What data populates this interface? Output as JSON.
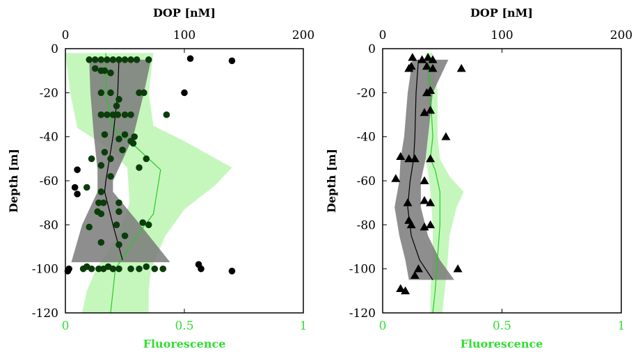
{
  "colors": {
    "fluor_band": "#c5f7bd",
    "fluor_line": "#22cc22",
    "dop_band": "#7a7a7a",
    "dop_line": "#000000",
    "marker_left": "#0b3d0b",
    "marker_left_outlier": "#000000",
    "marker_right": "#000000",
    "green_text": "#33dd33"
  },
  "chart_data": [
    {
      "type": "scatter",
      "panel": "left",
      "top_axis": {
        "label": "DOP [nM]",
        "range": [
          0,
          200
        ],
        "ticks": [
          "0",
          "100",
          "200"
        ],
        "tick_values": [
          0,
          100,
          200
        ]
      },
      "bottom_axis": {
        "label": "Fluorescence",
        "range": [
          0,
          1
        ],
        "ticks": [
          "0",
          "0.5",
          "1"
        ],
        "tick_values": [
          0,
          0.5,
          1
        ]
      },
      "y_axis": {
        "label": "Depth [m]",
        "range": [
          -120,
          0
        ],
        "ticks": [
          "0",
          "-20",
          "-40",
          "-60",
          "-80",
          "-100",
          "-120"
        ],
        "tick_values": [
          0,
          -20,
          -40,
          -60,
          -80,
          -100,
          -120
        ]
      },
      "grid": false,
      "marker": "circle",
      "dop_points": [
        [
          20,
          -5
        ],
        [
          25,
          -5
        ],
        [
          30,
          -5
        ],
        [
          35,
          -5
        ],
        [
          40,
          -5
        ],
        [
          45,
          -5
        ],
        [
          50,
          -5
        ],
        [
          55,
          -5
        ],
        [
          60,
          -5
        ],
        [
          70,
          -5
        ],
        [
          105,
          -4.5
        ],
        [
          140,
          -5.5
        ],
        [
          25,
          -9
        ],
        [
          30,
          -10
        ],
        [
          33,
          -10
        ],
        [
          38,
          -11
        ],
        [
          30,
          -20
        ],
        [
          38,
          -20
        ],
        [
          62,
          -20
        ],
        [
          66,
          -20
        ],
        [
          100,
          -20
        ],
        [
          45,
          -23
        ],
        [
          43,
          -26
        ],
        [
          30,
          -30
        ],
        [
          35,
          -30
        ],
        [
          40,
          -30
        ],
        [
          44,
          -30
        ],
        [
          50,
          -30
        ],
        [
          55,
          -30
        ],
        [
          85,
          -30
        ],
        [
          33,
          -39
        ],
        [
          50,
          -39
        ],
        [
          58,
          -40
        ],
        [
          45,
          -41
        ],
        [
          55,
          -42
        ],
        [
          57,
          -43
        ],
        [
          33,
          -47
        ],
        [
          48,
          -46
        ],
        [
          22,
          -50
        ],
        [
          38,
          -50
        ],
        [
          68,
          -50
        ],
        [
          30,
          -53
        ],
        [
          62,
          -54
        ],
        [
          10,
          -55
        ],
        [
          38,
          -58
        ],
        [
          8,
          -63
        ],
        [
          18,
          -63
        ],
        [
          30,
          -65
        ],
        [
          10,
          -66
        ],
        [
          28,
          -70
        ],
        [
          32,
          -70
        ],
        [
          45,
          -70
        ],
        [
          27,
          -74
        ],
        [
          30,
          -75
        ],
        [
          45,
          -74
        ],
        [
          65,
          -79
        ],
        [
          70,
          -80
        ],
        [
          43,
          -80
        ],
        [
          20,
          -81
        ],
        [
          50,
          -85
        ],
        [
          30,
          -88
        ],
        [
          45,
          -89
        ],
        [
          2,
          -101
        ],
        [
          3,
          -100
        ],
        [
          15,
          -100
        ],
        [
          18,
          -99
        ],
        [
          22,
          -100
        ],
        [
          28,
          -100
        ],
        [
          32,
          -100
        ],
        [
          36,
          -99
        ],
        [
          40,
          -100
        ],
        [
          45,
          -100
        ],
        [
          55,
          -100
        ],
        [
          62,
          -100
        ],
        [
          68,
          -99
        ],
        [
          75,
          -100
        ],
        [
          82,
          -100
        ],
        [
          112,
          -98
        ],
        [
          114,
          -100
        ],
        [
          140,
          -101
        ]
      ],
      "dop_mean_line": [
        [
          45,
          -5
        ],
        [
          44,
          -20
        ],
        [
          40,
          -40
        ],
        [
          34,
          -60
        ],
        [
          33,
          -65
        ],
        [
          40,
          -80
        ],
        [
          48,
          -96
        ]
      ],
      "dop_band": {
        "left": [
          [
            20,
            -5
          ],
          [
            21,
            -20
          ],
          [
            24,
            -40
          ],
          [
            27,
            -55
          ],
          [
            27,
            -65
          ],
          [
            14,
            -80
          ],
          [
            5,
            -97
          ]
        ],
        "right": [
          [
            72,
            -5
          ],
          [
            66,
            -20
          ],
          [
            57,
            -40
          ],
          [
            40,
            -60
          ],
          [
            40,
            -65
          ],
          [
            63,
            -80
          ],
          [
            88,
            -97
          ]
        ]
      },
      "fluor_mean_line": [
        [
          0.17,
          -2
        ],
        [
          0.17,
          -20
        ],
        [
          0.2,
          -36
        ],
        [
          0.3,
          -45
        ],
        [
          0.4,
          -55
        ],
        [
          0.37,
          -75
        ],
        [
          0.3,
          -85
        ],
        [
          0.24,
          -95
        ],
        [
          0.21,
          -100
        ],
        [
          0.2,
          -110
        ],
        [
          0.19,
          -120
        ]
      ],
      "fluor_band": {
        "left": [
          [
            0.0,
            -2
          ],
          [
            0.02,
            -20
          ],
          [
            0.05,
            -36
          ],
          [
            0.18,
            -45
          ],
          [
            0.26,
            -54
          ],
          [
            0.27,
            -70
          ],
          [
            0.22,
            -85
          ],
          [
            0.13,
            -100
          ],
          [
            0.09,
            -110
          ],
          [
            0.07,
            -120
          ]
        ],
        "right": [
          [
            0.37,
            -2
          ],
          [
            0.35,
            -20
          ],
          [
            0.37,
            -35
          ],
          [
            0.5,
            -42
          ],
          [
            0.7,
            -54
          ],
          [
            0.63,
            -62
          ],
          [
            0.5,
            -73
          ],
          [
            0.42,
            -85
          ],
          [
            0.36,
            -100
          ],
          [
            0.35,
            -110
          ],
          [
            0.35,
            -120
          ]
        ]
      }
    },
    {
      "type": "scatter",
      "panel": "right",
      "top_axis": {
        "label": "DOP [nM]",
        "range": [
          0,
          200
        ],
        "ticks": [
          "0",
          "100",
          "200"
        ],
        "tick_values": [
          0,
          100,
          200
        ]
      },
      "bottom_axis": {
        "label": "Fluorescence",
        "range": [
          0,
          1
        ],
        "ticks": [
          "0",
          "0.5",
          "1"
        ],
        "tick_values": [
          0,
          0.5,
          1
        ]
      },
      "y_axis": {
        "label": "Depth [m]",
        "range": [
          -120,
          0
        ],
        "ticks": [
          "0",
          "-20",
          "-40",
          "-60",
          "-80",
          "-100",
          "-120"
        ],
        "tick_values": [
          0,
          -20,
          -40,
          -60,
          -80,
          -100,
          -120
        ]
      },
      "grid": false,
      "marker": "triangle",
      "dop_points": [
        [
          25,
          -4
        ],
        [
          33,
          -5
        ],
        [
          38,
          -4
        ],
        [
          42,
          -5
        ],
        [
          22,
          -9
        ],
        [
          24,
          -8
        ],
        [
          37,
          -8
        ],
        [
          42,
          -9
        ],
        [
          66,
          -9
        ],
        [
          37,
          -20
        ],
        [
          40,
          -19
        ],
        [
          35,
          -29
        ],
        [
          40,
          -28
        ],
        [
          53,
          -40
        ],
        [
          15,
          -49
        ],
        [
          22,
          -50
        ],
        [
          27,
          -50
        ],
        [
          40,
          -50
        ],
        [
          11,
          -59
        ],
        [
          35,
          -60
        ],
        [
          21,
          -70
        ],
        [
          35,
          -69
        ],
        [
          40,
          -70
        ],
        [
          22,
          -78
        ],
        [
          24,
          -80
        ],
        [
          35,
          -81
        ],
        [
          40,
          -80
        ],
        [
          30,
          -100
        ],
        [
          63,
          -100
        ],
        [
          27,
          -103
        ],
        [
          15,
          -109
        ],
        [
          19,
          -110
        ]
      ],
      "dop_mean_line": [
        [
          30,
          -5
        ],
        [
          28,
          -20
        ],
        [
          27,
          -40
        ],
        [
          26,
          -50
        ],
        [
          23,
          -60
        ],
        [
          21,
          -72
        ],
        [
          24,
          -85
        ],
        [
          31,
          -96
        ],
        [
          42,
          -105
        ]
      ],
      "dop_band": {
        "left": [
          [
            25,
            -5
          ],
          [
            21,
            -20
          ],
          [
            18,
            -40
          ],
          [
            15,
            -50
          ],
          [
            14,
            -60
          ],
          [
            10,
            -72
          ],
          [
            14,
            -85
          ],
          [
            19,
            -96
          ],
          [
            22,
            -105
          ]
        ],
        "right": [
          [
            55,
            -5
          ],
          [
            42,
            -20
          ],
          [
            38,
            -40
          ],
          [
            36,
            -50
          ],
          [
            32,
            -60
          ],
          [
            32,
            -72
          ],
          [
            38,
            -85
          ],
          [
            48,
            -96
          ],
          [
            60,
            -105
          ]
        ]
      },
      "fluor_mean_line": [
        [
          0.19,
          -2
        ],
        [
          0.2,
          -20
        ],
        [
          0.21,
          -40
        ],
        [
          0.2,
          -50
        ],
        [
          0.22,
          -55
        ],
        [
          0.24,
          -65
        ],
        [
          0.24,
          -80
        ],
        [
          0.23,
          -95
        ],
        [
          0.22,
          -110
        ],
        [
          0.21,
          -120
        ]
      ],
      "fluor_band": {
        "left": [
          [
            0.18,
            -2
          ],
          [
            0.19,
            -20
          ],
          [
            0.19,
            -40
          ],
          [
            0.18,
            -50
          ],
          [
            0.19,
            -56
          ],
          [
            0.2,
            -65
          ],
          [
            0.21,
            -80
          ],
          [
            0.21,
            -95
          ],
          [
            0.2,
            -110
          ],
          [
            0.2,
            -120
          ]
        ],
        "right": [
          [
            0.21,
            -2
          ],
          [
            0.23,
            -20
          ],
          [
            0.23,
            -40
          ],
          [
            0.24,
            -50
          ],
          [
            0.28,
            -58
          ],
          [
            0.34,
            -65
          ],
          [
            0.31,
            -72
          ],
          [
            0.28,
            -85
          ],
          [
            0.27,
            -100
          ],
          [
            0.26,
            -110
          ],
          [
            0.25,
            -120
          ]
        ]
      }
    }
  ]
}
